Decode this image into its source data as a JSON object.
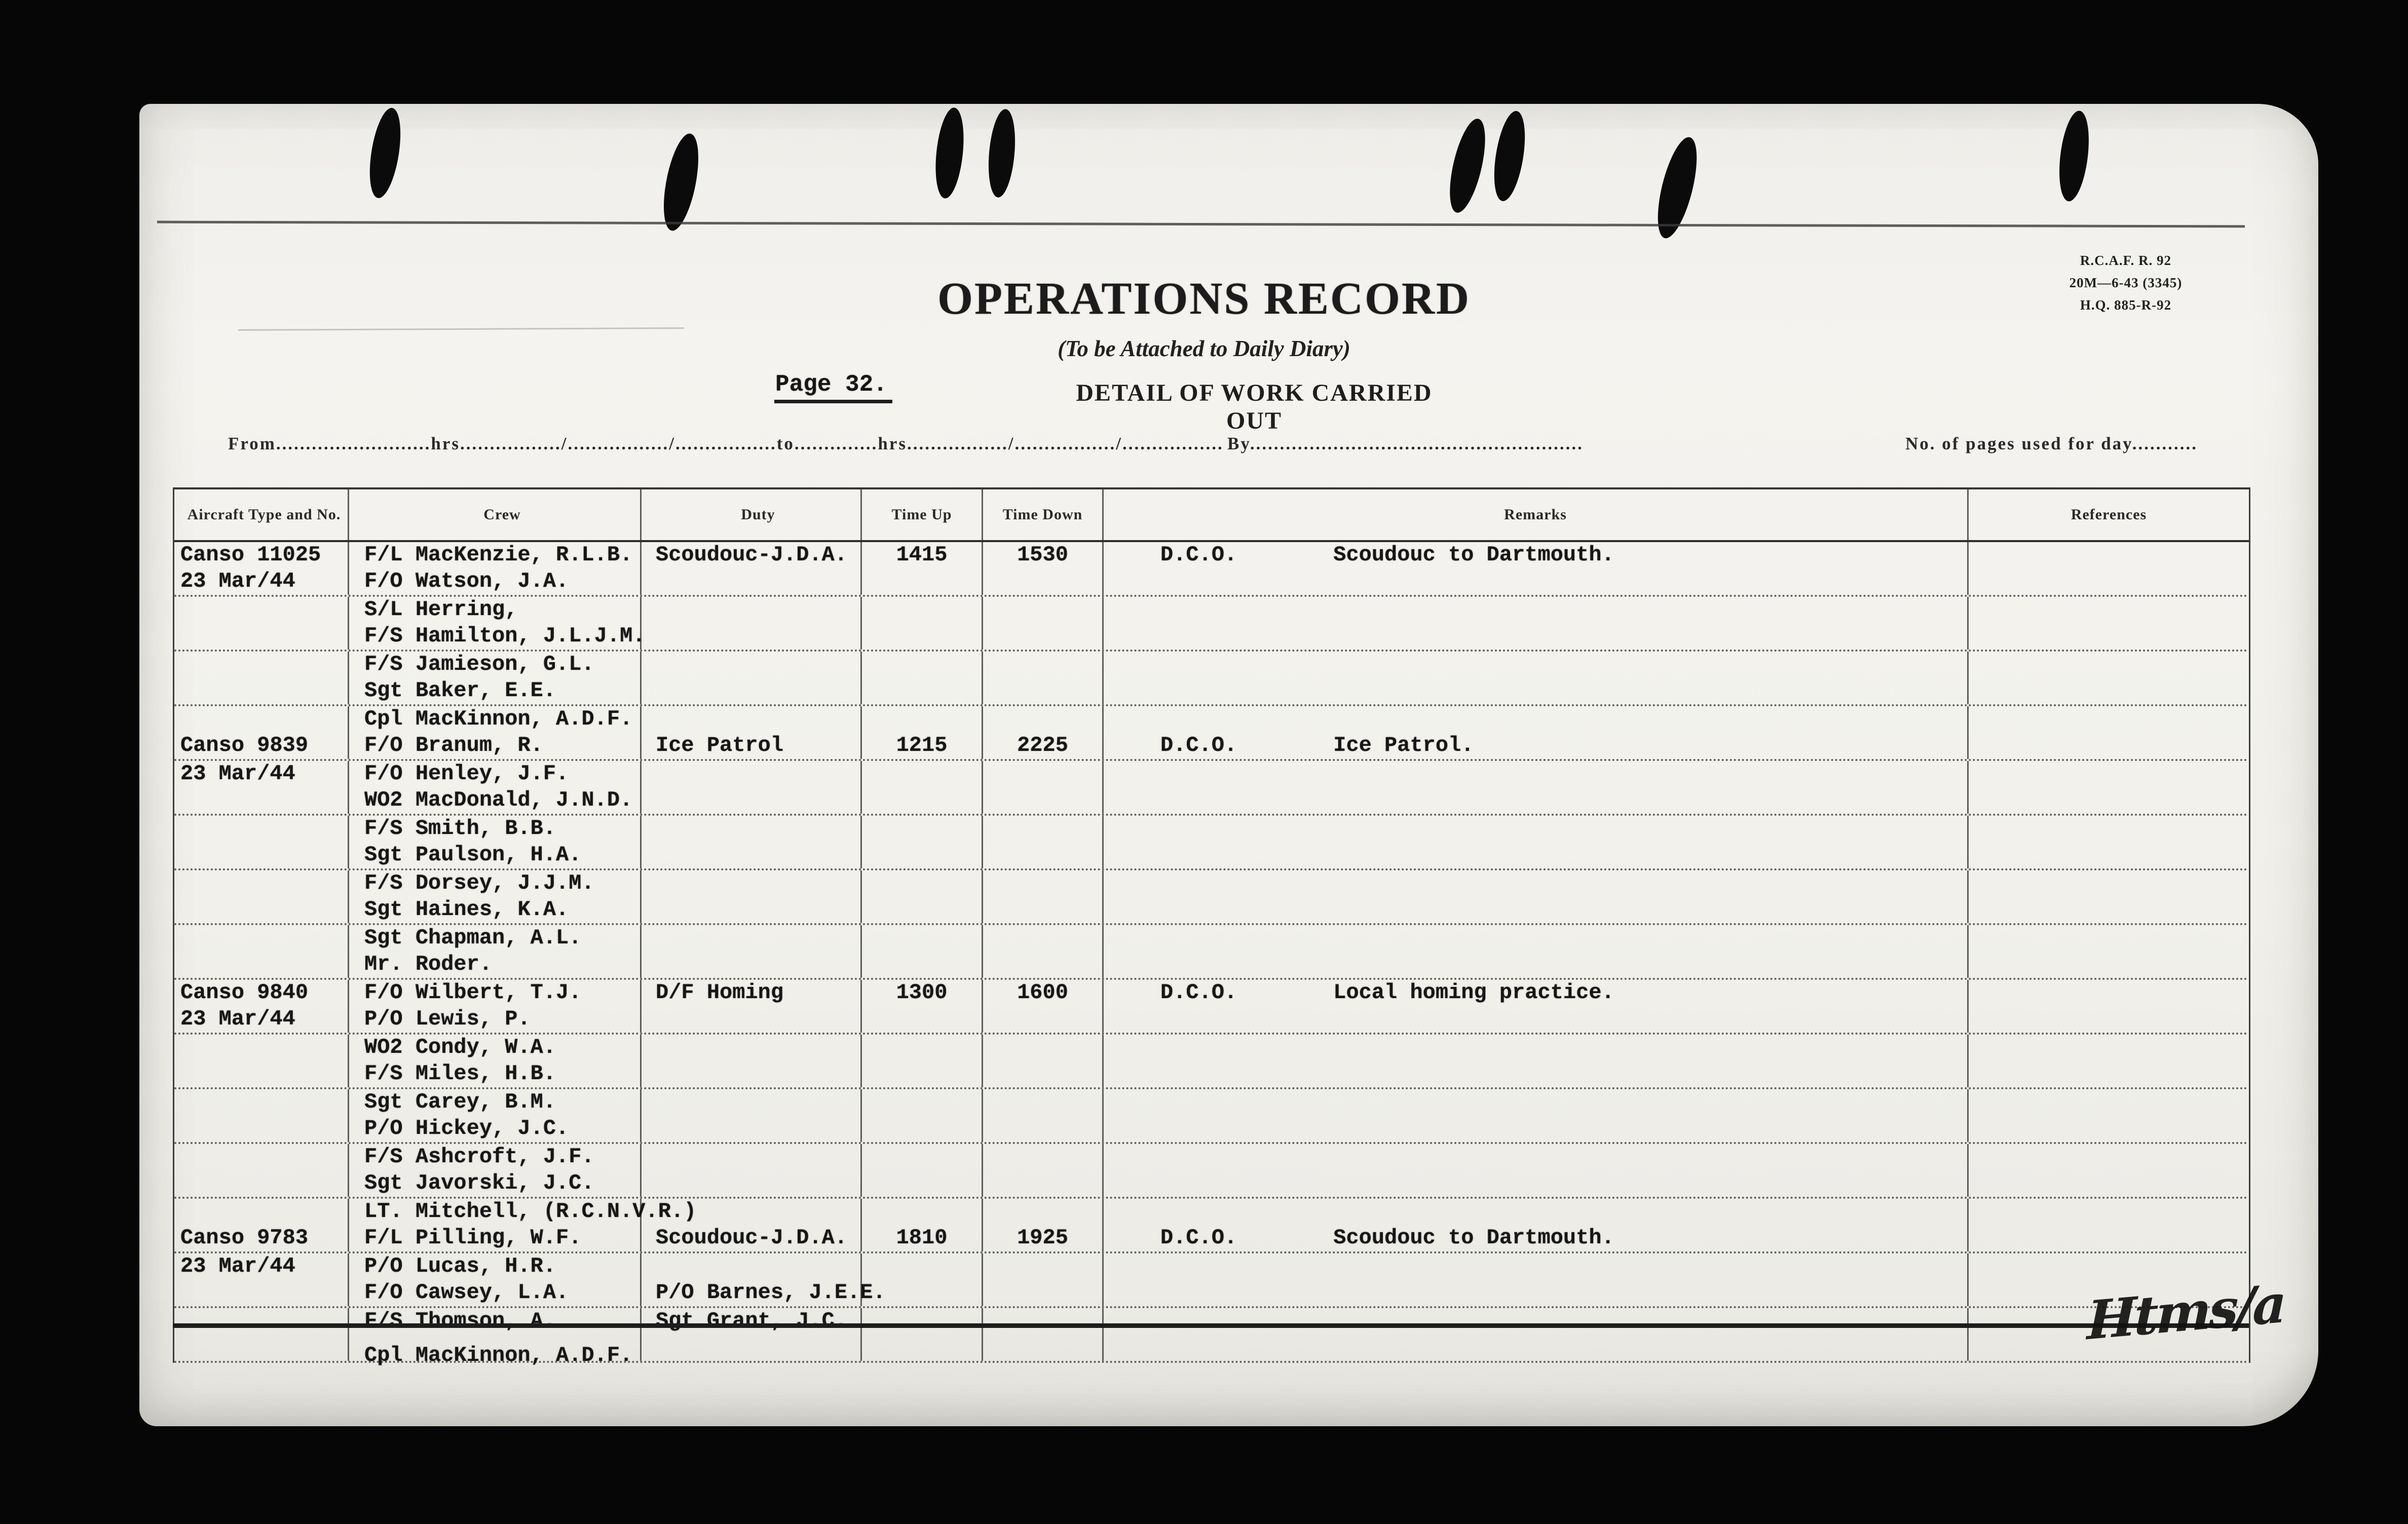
{
  "form": {
    "codes": [
      "R.C.A.F. R. 92",
      "20M—6-43 (3345)",
      "H.Q. 885-R-92"
    ],
    "title": "OPERATIONS RECORD",
    "subtitle": "(To be Attached to Daily Diary)",
    "page_label": "Page 32.",
    "section_title": "DETAIL OF WORK CARRIED OUT",
    "time_line": "From..........................hrs................./................./.................to..............hrs................./................./.................",
    "by_line": "By........................................................",
    "pages_line": "No. of pages used for day...........",
    "signature": "Htms/a"
  },
  "table": {
    "columns": [
      "Aircraft Type and No.",
      "Crew",
      "Duty",
      "Time Up",
      "Time Down",
      "Remarks",
      "References"
    ],
    "rows": [
      {
        "aircraft": "Canso 11025",
        "crew": "F/L MacKenzie, R.L.B.",
        "duty": "Scoudouc-J.D.A.",
        "up": "1415",
        "down": "1530",
        "remark_code": "D.C.O.",
        "remark_text": "Scoudouc to Dartmouth.",
        "refs": ""
      },
      {
        "aircraft": "23 Mar/44",
        "crew": "F/O Watson, J.A.",
        "duty": "",
        "up": "",
        "down": "",
        "remark_code": "",
        "remark_text": "",
        "refs": ""
      },
      {
        "aircraft": "",
        "crew": "S/L Herring,",
        "duty": "",
        "up": "",
        "down": "",
        "remark_code": "",
        "remark_text": "",
        "refs": ""
      },
      {
        "aircraft": "",
        "crew": "F/S Hamilton, J.L.J.M.",
        "duty": "",
        "up": "",
        "down": "",
        "remark_code": "",
        "remark_text": "",
        "refs": ""
      },
      {
        "aircraft": "",
        "crew": "F/S Jamieson, G.L.",
        "duty": "",
        "up": "",
        "down": "",
        "remark_code": "",
        "remark_text": "",
        "refs": ""
      },
      {
        "aircraft": "",
        "crew": "Sgt Baker, E.E.",
        "duty": "",
        "up": "",
        "down": "",
        "remark_code": "",
        "remark_text": "",
        "refs": ""
      },
      {
        "aircraft": "",
        "crew": "Cpl MacKinnon, A.D.F.",
        "duty": "",
        "up": "",
        "down": "",
        "remark_code": "",
        "remark_text": "",
        "refs": ""
      },
      {
        "aircraft": "Canso 9839",
        "crew": "F/O Branum, R.",
        "duty": "Ice Patrol",
        "up": "1215",
        "down": "2225",
        "remark_code": "D.C.O.",
        "remark_text": "Ice Patrol.",
        "refs": ""
      },
      {
        "aircraft": "23 Mar/44",
        "crew": "F/O Henley, J.F.",
        "duty": "",
        "up": "",
        "down": "",
        "remark_code": "",
        "remark_text": "",
        "refs": ""
      },
      {
        "aircraft": "",
        "crew": "WO2 MacDonald, J.N.D.",
        "duty": "",
        "up": "",
        "down": "",
        "remark_code": "",
        "remark_text": "",
        "refs": ""
      },
      {
        "aircraft": "",
        "crew": "F/S Smith, B.B.",
        "duty": "",
        "up": "",
        "down": "",
        "remark_code": "",
        "remark_text": "",
        "refs": ""
      },
      {
        "aircraft": "",
        "crew": "Sgt Paulson, H.A.",
        "duty": "",
        "up": "",
        "down": "",
        "remark_code": "",
        "remark_text": "",
        "refs": ""
      },
      {
        "aircraft": "",
        "crew": "F/S Dorsey, J.J.M.",
        "duty": "",
        "up": "",
        "down": "",
        "remark_code": "",
        "remark_text": "",
        "refs": ""
      },
      {
        "aircraft": "",
        "crew": "Sgt Haines, K.A.",
        "duty": "",
        "up": "",
        "down": "",
        "remark_code": "",
        "remark_text": "",
        "refs": ""
      },
      {
        "aircraft": "",
        "crew": "Sgt Chapman, A.L.",
        "duty": "",
        "up": "",
        "down": "",
        "remark_code": "",
        "remark_text": "",
        "refs": ""
      },
      {
        "aircraft": "",
        "crew": "Mr. Roder.",
        "duty": "",
        "up": "",
        "down": "",
        "remark_code": "",
        "remark_text": "",
        "refs": ""
      },
      {
        "aircraft": "Canso 9840",
        "crew": "F/O Wilbert, T.J.",
        "duty": "D/F Homing",
        "up": "1300",
        "down": "1600",
        "remark_code": "D.C.O.",
        "remark_text": "Local homing practice.",
        "refs": ""
      },
      {
        "aircraft": "23 Mar/44",
        "crew": "P/O Lewis, P.",
        "duty": "",
        "up": "",
        "down": "",
        "remark_code": "",
        "remark_text": "",
        "refs": ""
      },
      {
        "aircraft": "",
        "crew": "WO2 Condy, W.A.",
        "duty": "",
        "up": "",
        "down": "",
        "remark_code": "",
        "remark_text": "",
        "refs": ""
      },
      {
        "aircraft": "",
        "crew": "F/S Miles, H.B.",
        "duty": "",
        "up": "",
        "down": "",
        "remark_code": "",
        "remark_text": "",
        "refs": ""
      },
      {
        "aircraft": "",
        "crew": "Sgt Carey, B.M.",
        "duty": "",
        "up": "",
        "down": "",
        "remark_code": "",
        "remark_text": "",
        "refs": ""
      },
      {
        "aircraft": "",
        "crew": "P/O Hickey, J.C.",
        "duty": "",
        "up": "",
        "down": "",
        "remark_code": "",
        "remark_text": "",
        "refs": ""
      },
      {
        "aircraft": "",
        "crew": "F/S Ashcroft, J.F.",
        "duty": "",
        "up": "",
        "down": "",
        "remark_code": "",
        "remark_text": "",
        "refs": ""
      },
      {
        "aircraft": "",
        "crew": "Sgt Javorski, J.C.",
        "duty": "",
        "up": "",
        "down": "",
        "remark_code": "",
        "remark_text": "",
        "refs": ""
      },
      {
        "aircraft": "",
        "crew": "LT. Mitchell, (R.C.N.V.R.)",
        "duty": "",
        "up": "",
        "down": "",
        "remark_code": "",
        "remark_text": "",
        "refs": ""
      },
      {
        "aircraft": "Canso 9783",
        "crew": "F/L Pilling, W.F.",
        "duty": "Scoudouc-J.D.A.",
        "up": "1810",
        "down": "1925",
        "remark_code": "D.C.O.",
        "remark_text": "Scoudouc to Dartmouth.",
        "refs": ""
      },
      {
        "aircraft": "23 Mar/44",
        "crew": "P/O Lucas, H.R.",
        "duty": "",
        "up": "",
        "down": "",
        "remark_code": "",
        "remark_text": "",
        "refs": ""
      },
      {
        "aircraft": "",
        "crew": "F/O Cawsey, L.A.",
        "duty": "P/O Barnes, J.E.E.",
        "up": "",
        "down": "",
        "remark_code": "",
        "remark_text": "",
        "refs": ""
      },
      {
        "aircraft": "",
        "crew": "F/S Thomson, A.",
        "duty": "Sgt Grant, J.C.",
        "up": "",
        "down": "",
        "remark_code": "",
        "remark_text": "",
        "refs": ""
      },
      {
        "aircraft": "",
        "crew": "Cpl MacKinnon, A.D.F.",
        "duty": "",
        "up": "",
        "down": "",
        "remark_code": "",
        "remark_text": "",
        "refs": ""
      }
    ]
  }
}
